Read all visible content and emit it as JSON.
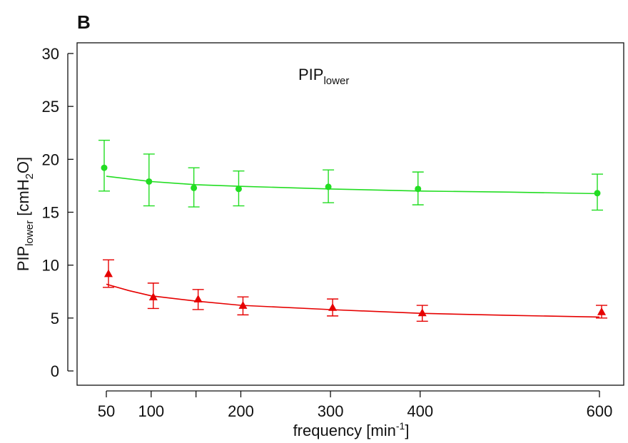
{
  "panel_label": "B",
  "annotation": {
    "main": "PIP",
    "sub": "lower"
  },
  "colors": {
    "green": "#22dd22",
    "red": "#e60000",
    "axis": "#111111"
  },
  "chart_data": {
    "type": "scatter",
    "xlabel": {
      "main": "frequency [min",
      "sup": "-1",
      "end": "]"
    },
    "ylabel": {
      "pre": "PIP",
      "sub1": "lower",
      "mid": " [cmH",
      "sub2": "2",
      "end": "O]"
    },
    "xlim": [
      0,
      630
    ],
    "ylim": [
      0,
      30
    ],
    "x_ticks": [
      50,
      100,
      200,
      300,
      400,
      600
    ],
    "x_minor_ticks": [
      150
    ],
    "y_ticks": [
      0,
      5,
      10,
      15,
      20,
      25,
      30
    ],
    "grid": false,
    "series": [
      {
        "color": "green",
        "marker": "circle",
        "x": [
          50,
          100,
          150,
          200,
          300,
          400,
          600
        ],
        "y": [
          19.2,
          17.9,
          17.3,
          17.2,
          17.4,
          17.2,
          16.8
        ],
        "err_low": [
          17.0,
          15.6,
          15.5,
          15.6,
          15.9,
          15.7,
          15.2
        ],
        "err_high": [
          21.8,
          20.5,
          19.2,
          18.9,
          19.0,
          18.8,
          18.6
        ],
        "fit_x": [
          50,
          100,
          150,
          200,
          300,
          400,
          500,
          600
        ],
        "fit_y": [
          18.4,
          17.9,
          17.6,
          17.45,
          17.2,
          17.0,
          16.9,
          16.75
        ]
      },
      {
        "color": "red",
        "marker": "triangle",
        "x": [
          50,
          100,
          150,
          200,
          300,
          400,
          600
        ],
        "y": [
          9.2,
          7.0,
          6.8,
          6.2,
          6.0,
          5.5,
          5.6
        ],
        "err_low": [
          7.9,
          5.9,
          5.8,
          5.3,
          5.2,
          4.7,
          5.0
        ],
        "err_high": [
          10.5,
          8.3,
          7.7,
          7.0,
          6.8,
          6.2,
          6.2
        ],
        "fit_x": [
          50,
          75,
          100,
          150,
          200,
          300,
          400,
          500,
          600
        ],
        "fit_y": [
          8.2,
          7.6,
          7.1,
          6.6,
          6.2,
          5.8,
          5.45,
          5.25,
          5.1
        ]
      }
    ]
  }
}
